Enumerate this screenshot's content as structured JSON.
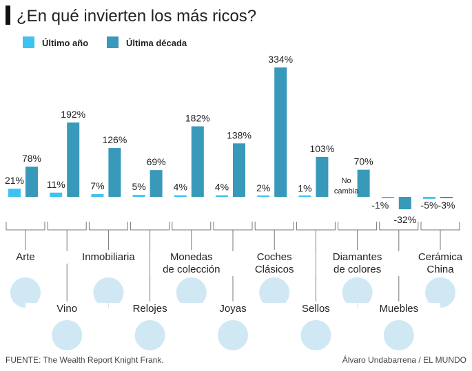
{
  "chart_data": {
    "type": "bar",
    "title": "¿En qué invierten los más ricos?",
    "categories": [
      "Arte",
      "Vino",
      "Inmobiliaria",
      "Relojes",
      "Monedas\nde colección",
      "Joyas",
      "Coches\nClásicos",
      "Sellos",
      "Diamantes\nde colores",
      "Muebles",
      "Cerámica\nChina"
    ],
    "series": [
      {
        "name": "Último año",
        "color": "#3ec3ef",
        "values": [
          21,
          11,
          7,
          5,
          4,
          4,
          2,
          1,
          0,
          -1,
          -5
        ],
        "value_labels": [
          "21%",
          "11%",
          "7%",
          "5%",
          "4%",
          "4%",
          "2%",
          "1%",
          "No\ncambia",
          "-1%",
          "-5%"
        ]
      },
      {
        "name": "Última década",
        "color": "#3899ba",
        "values": [
          78,
          192,
          126,
          69,
          182,
          138,
          334,
          103,
          70,
          -32,
          -3
        ],
        "value_labels": [
          "78%",
          "192%",
          "126%",
          "69%",
          "182%",
          "138%",
          "334%",
          "103%",
          "70%",
          "-32%",
          "-3%"
        ]
      }
    ],
    "source": "FUENTE: The Wealth Report Knight Frank.",
    "credit": "Álvaro Undabarrena / EL MUNDO"
  }
}
